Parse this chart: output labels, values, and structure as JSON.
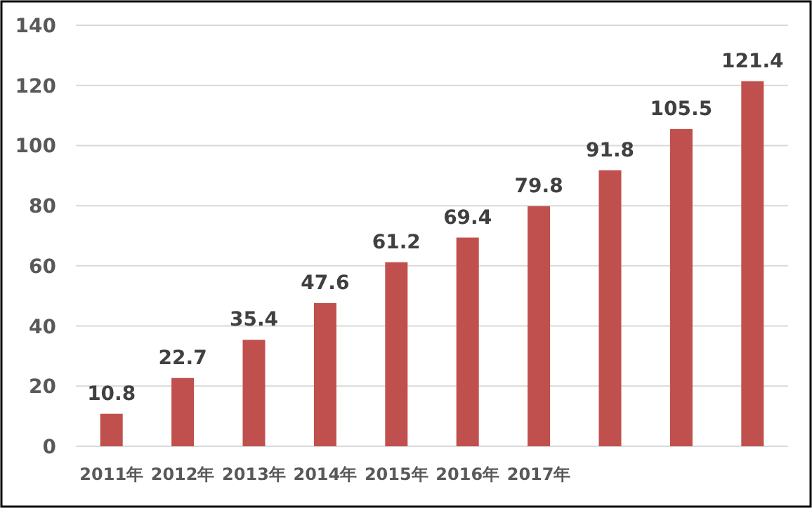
{
  "chart_data": {
    "type": "bar",
    "categories": [
      "2011年",
      "2012年",
      "2013年",
      "2014年",
      "2015年",
      "2016年",
      "2017年",
      null,
      null,
      null
    ],
    "values": [
      10.8,
      22.7,
      35.4,
      47.6,
      61.2,
      69.4,
      79.8,
      91.8,
      105.5,
      121.4
    ],
    "color": "#c0504d",
    "ylim": [
      0,
      140
    ],
    "yticks": [
      0,
      20,
      40,
      60,
      80,
      100,
      120,
      140
    ],
    "grid": "y",
    "data_labels": true
  }
}
